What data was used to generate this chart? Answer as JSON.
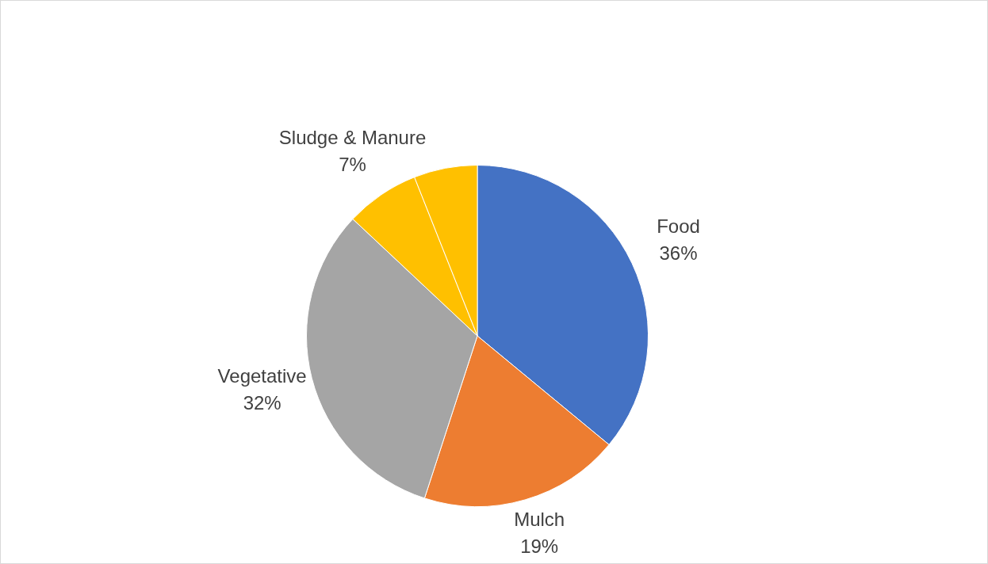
{
  "chart_data": {
    "type": "pie",
    "categories": [
      "Food",
      "Mulch",
      "Vegetative",
      "Sludge & Manure",
      null
    ],
    "values": [
      36,
      19,
      32,
      7,
      6
    ],
    "value_labels": [
      "36%",
      "19%",
      "32%",
      "7%",
      null
    ],
    "colors": [
      "#4472c4",
      "#ed7d31",
      "#a5a5a5",
      "#ffc000",
      "#ffc000"
    ]
  }
}
